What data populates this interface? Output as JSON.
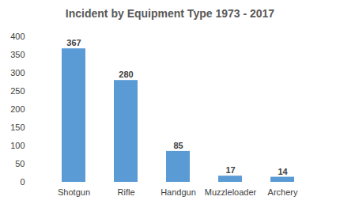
{
  "chart_data": {
    "type": "bar",
    "title": "Incident by Equipment Type 1973 - 2017",
    "categories": [
      "Shotgun",
      "Rifle",
      "Handgun",
      "Muzzleloader",
      "Archery"
    ],
    "values": [
      367,
      280,
      85,
      17,
      14
    ],
    "color": "#5b9bd5",
    "ylim": [
      0,
      400
    ],
    "yticks": [
      0,
      50,
      100,
      150,
      200,
      250,
      300,
      350,
      400
    ],
    "grid": false,
    "data_labels": true
  }
}
